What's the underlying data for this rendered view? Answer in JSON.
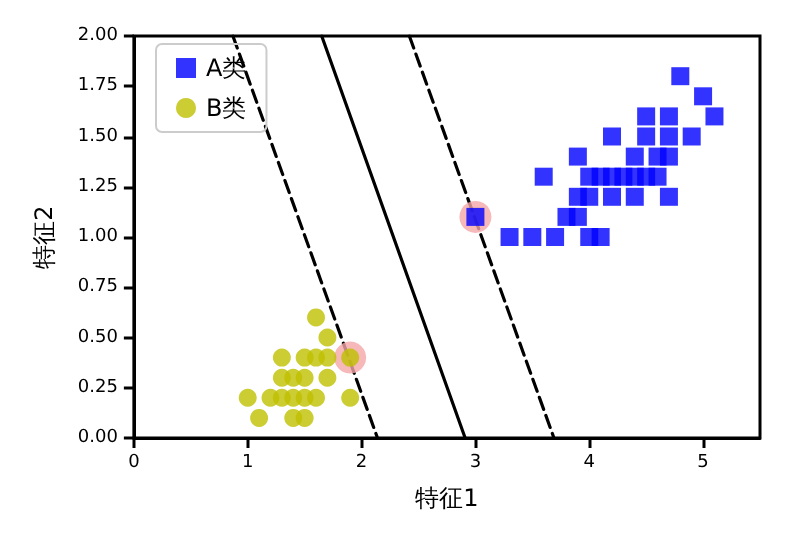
{
  "chart_data": {
    "type": "scatter",
    "xlabel": "特征1",
    "ylabel": "特征2",
    "xlim": [
      0,
      5.5
    ],
    "xticks": [
      0,
      1,
      2,
      3,
      4,
      5
    ],
    "ylim": [
      0,
      2
    ],
    "yticks": [
      {
        "value": 0,
        "label": "0.00"
      },
      {
        "value": 0.25,
        "label": "0.25"
      },
      {
        "value": 0.5,
        "label": "0.50"
      },
      {
        "value": 0.75,
        "label": "0.75"
      },
      {
        "value": 1,
        "label": "1.00"
      },
      {
        "value": 1.25,
        "label": "1.25"
      },
      {
        "value": 1.5,
        "label": "1.50"
      },
      {
        "value": 1.75,
        "label": "1.75"
      },
      {
        "value": 2,
        "label": "2.00"
      }
    ],
    "grid": false,
    "legend": "top left",
    "series": [
      {
        "color": "#f4a6a6",
        "marker": "circle",
        "x": [
          1.9,
          3.0
        ],
        "values": [
          0.4,
          1.1
        ]
      },
      {
        "type": "line",
        "color": "#000000",
        "line_style": "dashed",
        "marker": "none",
        "x": [
          0.87,
          2.14
        ],
        "values": [
          2,
          0
        ]
      },
      {
        "type": "line",
        "color": "#000000",
        "line_style": "solid",
        "marker": "none",
        "x": [
          1.65,
          2.91
        ],
        "values": [
          2,
          0
        ]
      },
      {
        "type": "line",
        "color": "#000000",
        "line_style": "dashed",
        "marker": "none",
        "x": [
          2.42,
          3.69
        ],
        "values": [
          2,
          0
        ]
      },
      {
        "name": "A类",
        "color": "#0000ff",
        "marker": "square",
        "x": [
          3.3,
          3.5,
          3.7,
          4.0,
          4.1,
          3.8,
          3.9,
          3.0,
          3.9,
          4.0,
          4.2,
          4.4,
          4.7,
          3.6,
          4.0,
          4.1,
          4.2,
          4.3,
          4.4,
          4.5,
          4.6,
          3.9,
          4.4,
          4.6,
          4.7,
          4.2,
          4.5,
          4.7,
          4.9,
          4.5,
          4.7,
          5.0,
          5.1,
          4.8
        ],
        "values": [
          1.0,
          1.0,
          1.0,
          1.0,
          1.0,
          1.1,
          1.1,
          1.1,
          1.2,
          1.2,
          1.2,
          1.2,
          1.2,
          1.3,
          1.3,
          1.3,
          1.3,
          1.3,
          1.3,
          1.3,
          1.3,
          1.4,
          1.4,
          1.4,
          1.4,
          1.5,
          1.5,
          1.5,
          1.5,
          1.6,
          1.6,
          1.7,
          1.6,
          1.8
        ]
      },
      {
        "name": "B类",
        "color": "#bfbf00",
        "marker": "circle",
        "x": [
          1.0,
          1.1,
          1.2,
          1.3,
          1.4,
          1.5,
          1.6,
          1.9,
          1.4,
          1.5,
          1.3,
          1.4,
          1.5,
          1.7,
          1.3,
          1.5,
          1.6,
          1.7,
          1.9,
          1.7,
          1.6
        ],
        "values": [
          0.2,
          0.1,
          0.2,
          0.2,
          0.2,
          0.2,
          0.2,
          0.2,
          0.1,
          0.1,
          0.3,
          0.3,
          0.3,
          0.3,
          0.4,
          0.4,
          0.4,
          0.4,
          0.4,
          0.5,
          0.6
        ]
      }
    ]
  }
}
